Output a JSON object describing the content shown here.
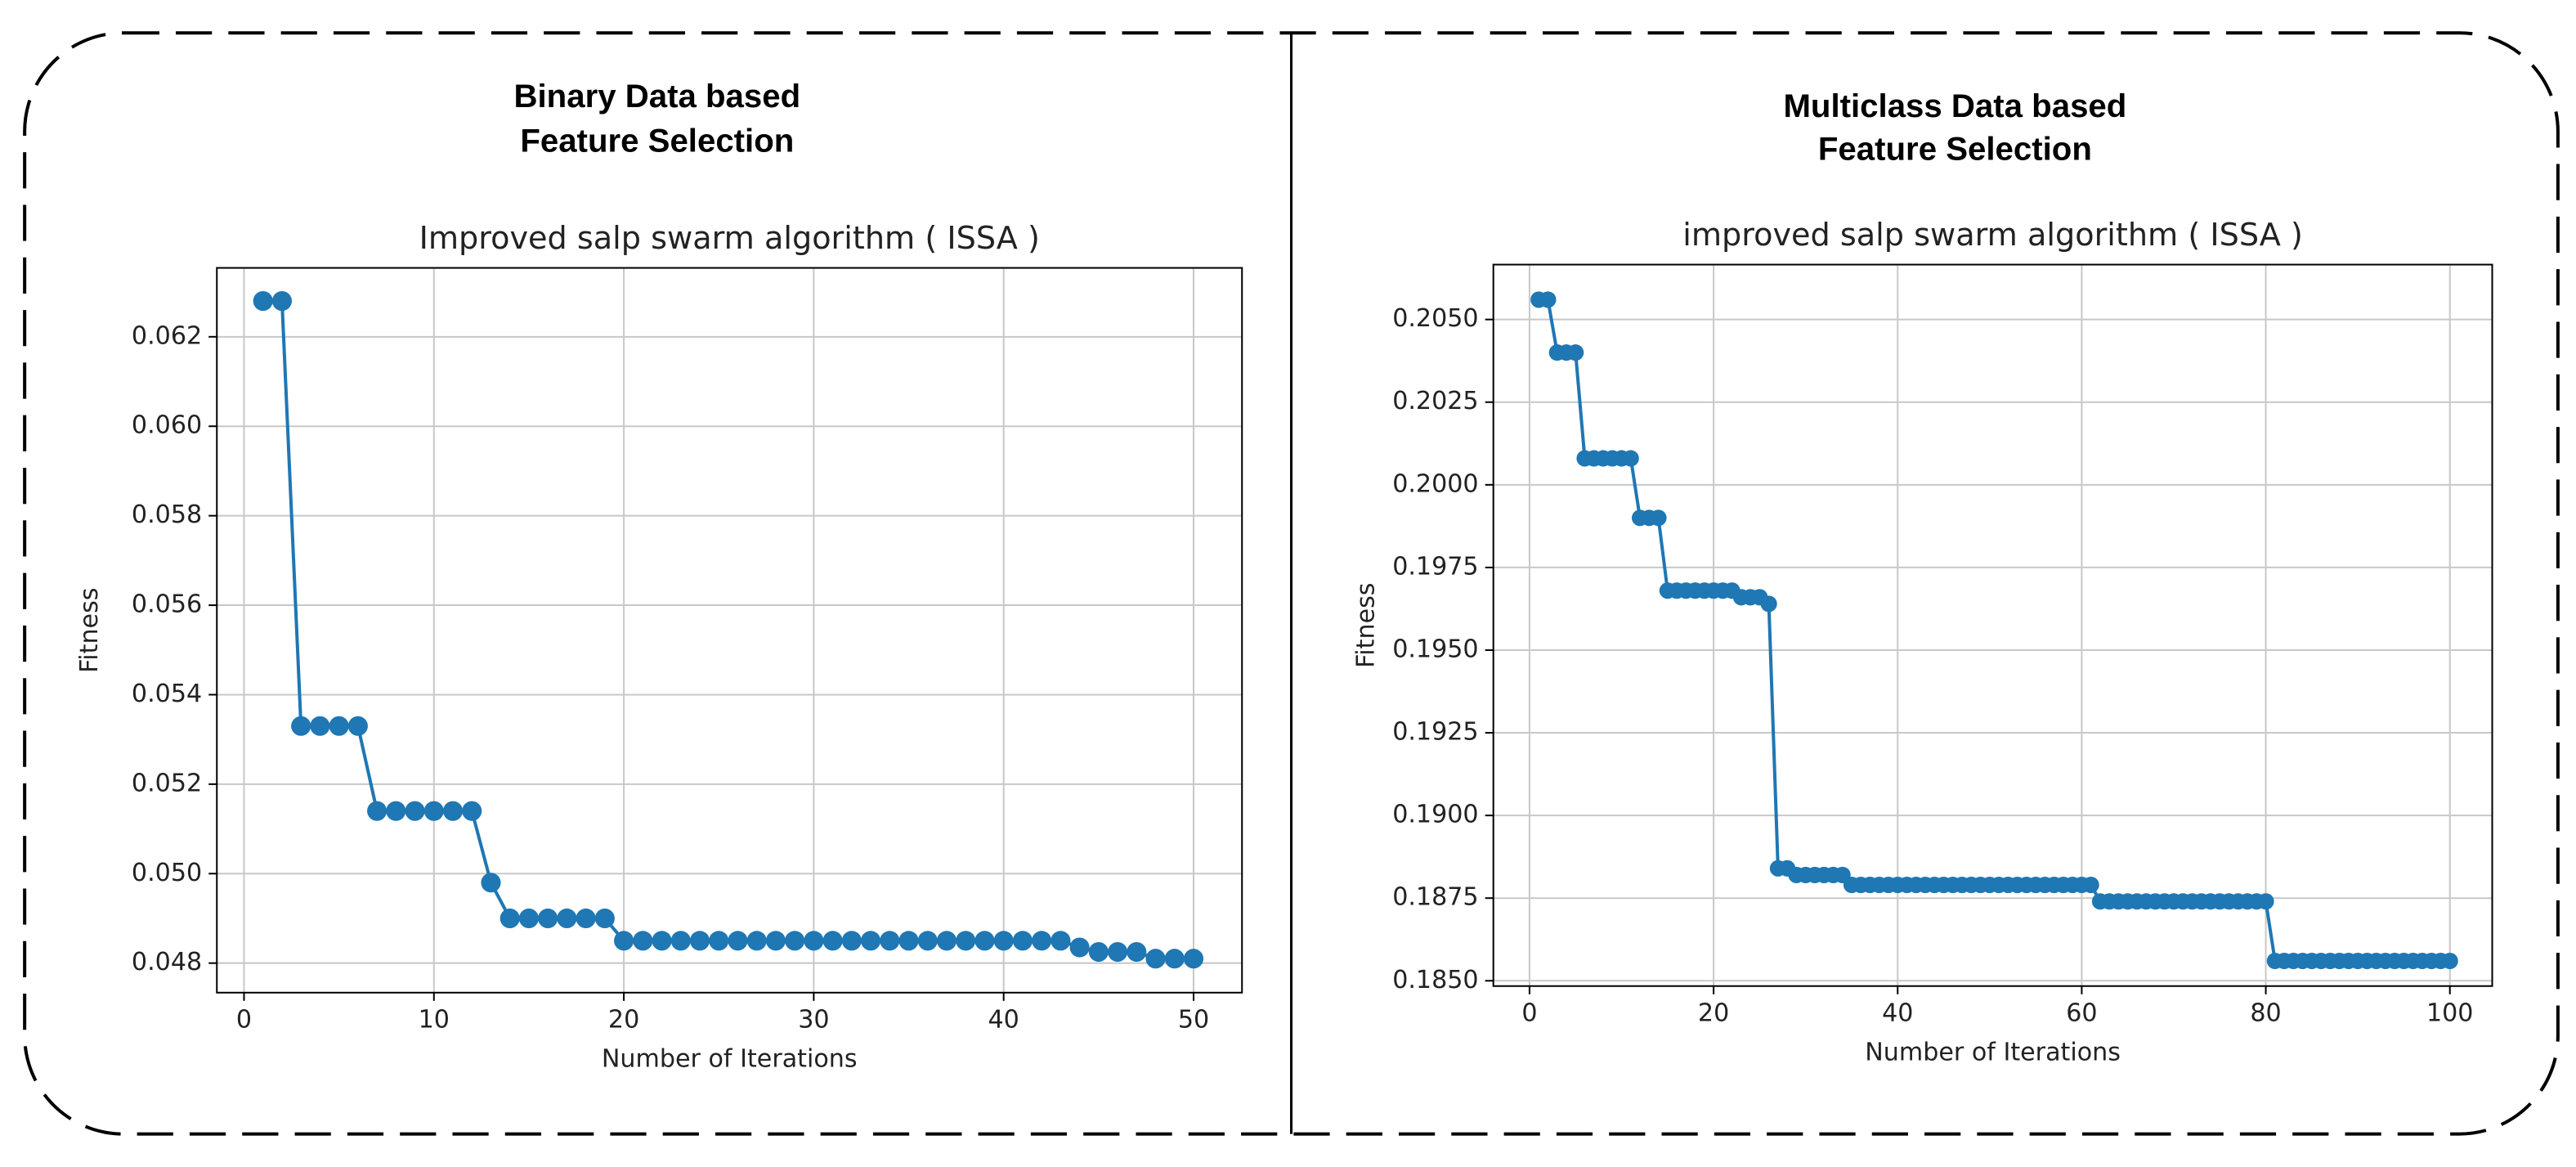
{
  "headings": [
    [
      "Binary Data based",
      "Feature Selection"
    ],
    [
      "Multiclass Data based",
      "Feature Selection"
    ]
  ],
  "chart_data": [
    {
      "type": "line",
      "title": "Improved salp swarm algorithm ( ISSA )",
      "x_label": "Number of Iterations",
      "y_label": "Fitness",
      "color": "#1f77b4",
      "grid": true,
      "markers": true,
      "x": [
        1,
        2,
        3,
        4,
        5,
        6,
        7,
        8,
        9,
        10,
        11,
        12,
        13,
        14,
        15,
        16,
        17,
        18,
        19,
        20,
        21,
        22,
        23,
        24,
        25,
        26,
        27,
        28,
        29,
        30,
        31,
        32,
        33,
        34,
        35,
        36,
        37,
        38,
        39,
        40,
        41,
        42,
        43,
        44,
        45,
        46,
        47,
        48,
        49,
        50
      ],
      "values": [
        0.0628,
        0.0628,
        0.0533,
        0.0533,
        0.0533,
        0.0533,
        0.0514,
        0.0514,
        0.0514,
        0.0514,
        0.0514,
        0.0514,
        0.0498,
        0.049,
        0.049,
        0.049,
        0.049,
        0.049,
        0.049,
        0.0485,
        0.0485,
        0.0485,
        0.0485,
        0.0485,
        0.0485,
        0.0485,
        0.0485,
        0.0485,
        0.0485,
        0.0485,
        0.0485,
        0.0485,
        0.0485,
        0.0485,
        0.0485,
        0.0485,
        0.0485,
        0.0485,
        0.0485,
        0.0485,
        0.0485,
        0.0485,
        0.0485,
        0.04835,
        0.04825,
        0.04825,
        0.04825,
        0.0481,
        0.0481,
        0.0481
      ],
      "xlim": [
        -1.43,
        52.55
      ],
      "xticks": [
        0,
        10,
        20,
        30,
        40,
        50
      ],
      "ylim": [
        0.04734,
        0.06354
      ],
      "yticks": [
        0.048,
        {
          "value": 0.05,
          "label": "0.050"
        },
        0.052,
        0.054,
        0.056,
        0.058,
        {
          "value": 0.06,
          "label": "0.060"
        },
        0.062
      ]
    },
    {
      "type": "line",
      "title": "improved salp swarm algorithm ( ISSA )",
      "x_label": "Number of Iterations",
      "y_label": "Fitness",
      "color": "#1f77b4",
      "grid": true,
      "markers": true,
      "x": [
        1,
        2,
        3,
        4,
        5,
        6,
        7,
        8,
        9,
        10,
        11,
        12,
        13,
        14,
        15,
        16,
        17,
        18,
        19,
        20,
        21,
        22,
        23,
        24,
        25,
        26,
        27,
        28,
        29,
        30,
        31,
        32,
        33,
        34,
        35,
        36,
        37,
        38,
        39,
        40,
        41,
        42,
        43,
        44,
        45,
        46,
        47,
        48,
        49,
        50,
        51,
        52,
        53,
        54,
        55,
        56,
        57,
        58,
        59,
        60,
        61,
        62,
        63,
        64,
        65,
        66,
        67,
        68,
        69,
        70,
        71,
        72,
        73,
        74,
        75,
        76,
        77,
        78,
        79,
        80,
        81,
        82,
        83,
        84,
        85,
        86,
        87,
        88,
        89,
        90,
        91,
        92,
        93,
        94,
        95,
        96,
        97,
        98,
        99,
        100
      ],
      "values": [
        0.2056,
        0.2056,
        0.204,
        0.204,
        0.204,
        0.2008,
        0.2008,
        0.2008,
        0.2008,
        0.2008,
        0.2008,
        0.199,
        0.199,
        0.199,
        0.1968,
        0.1968,
        0.1968,
        0.1968,
        0.1968,
        0.1968,
        0.1968,
        0.1968,
        0.1966,
        0.1966,
        0.1966,
        0.1964,
        0.1884,
        0.1884,
        0.1882,
        0.1882,
        0.1882,
        0.1882,
        0.1882,
        0.1882,
        0.1879,
        0.1879,
        0.1879,
        0.1879,
        0.1879,
        0.1879,
        0.1879,
        0.1879,
        0.1879,
        0.1879,
        0.1879,
        0.1879,
        0.1879,
        0.1879,
        0.1879,
        0.1879,
        0.1879,
        0.1879,
        0.1879,
        0.1879,
        0.1879,
        0.1879,
        0.1879,
        0.1879,
        0.1879,
        0.1879,
        0.1879,
        0.1874,
        0.1874,
        0.1874,
        0.1874,
        0.1874,
        0.1874,
        0.1874,
        0.1874,
        0.1874,
        0.1874,
        0.1874,
        0.1874,
        0.1874,
        0.1874,
        0.1874,
        0.1874,
        0.1874,
        0.1874,
        0.1874,
        0.1856,
        0.1856,
        0.1856,
        0.1856,
        0.1856,
        0.1856,
        0.1856,
        0.1856,
        0.1856,
        0.1856,
        0.1856,
        0.1856,
        0.1856,
        0.1856,
        0.1856,
        0.1856,
        0.1856,
        0.1856,
        0.1856,
        0.1856
      ],
      "xlim": [
        -3.93,
        104.6
      ],
      "xticks": [
        0,
        20,
        40,
        60,
        80,
        100
      ],
      "ylim": [
        0.18484,
        0.20666
      ],
      "yticks": [
        {
          "value": 0.185,
          "label": "0.1850"
        },
        0.1875,
        {
          "value": 0.19,
          "label": "0.1900"
        },
        0.1925,
        {
          "value": 0.195,
          "label": "0.1950"
        },
        0.1975,
        {
          "value": 0.2,
          "label": "0.2000"
        },
        0.2025,
        {
          "value": 0.205,
          "label": "0.2050"
        }
      ]
    }
  ]
}
